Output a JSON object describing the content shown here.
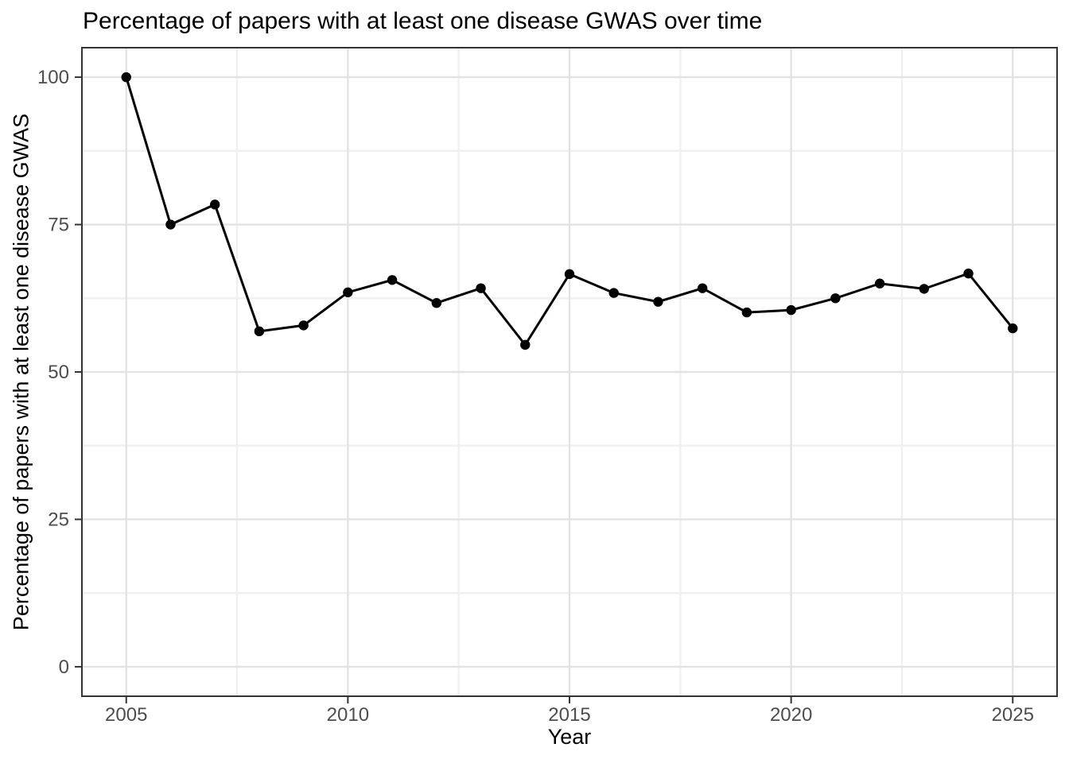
{
  "chart_data": {
    "type": "line",
    "title": "Percentage of papers with at least one disease GWAS over time",
    "xlabel": "Year",
    "ylabel": "Percentage of papers with at least one disease GWAS",
    "x": [
      2005,
      2006,
      2007,
      2008,
      2009,
      2010,
      2011,
      2012,
      2013,
      2014,
      2015,
      2016,
      2017,
      2018,
      2019,
      2020,
      2021,
      2022,
      2023,
      2024,
      2025
    ],
    "values": [
      100,
      75,
      78.4,
      56.9,
      57.9,
      63.5,
      65.6,
      61.7,
      64.2,
      54.6,
      66.6,
      63.4,
      61.9,
      64.2,
      60.1,
      60.5,
      62.5,
      65.0,
      64.1,
      66.7,
      57.4
    ],
    "xlim": [
      2004,
      2026
    ],
    "ylim": [
      -5,
      105
    ],
    "x_major_ticks": [
      2005,
      2010,
      2015,
      2020,
      2025
    ],
    "x_tick_labels": [
      "2005",
      "2010",
      "2015",
      "2020",
      "2025"
    ],
    "x_minor_ticks": [
      2007.5,
      2012.5,
      2017.5,
      2022.5
    ],
    "y_major_ticks": [
      0,
      25,
      50,
      75,
      100
    ],
    "y_tick_labels": [
      "0",
      "25",
      "50",
      "75",
      "100"
    ],
    "y_minor_ticks": [
      12.5,
      37.5,
      62.5,
      87.5
    ],
    "grid": "major+minor",
    "legend": "none",
    "style": {
      "line_color": "#000000",
      "point_color": "#000000",
      "grid_major_color": "#e3e3e3",
      "grid_minor_color": "#f0f0f0",
      "panel_border_color": "#333333",
      "tick_color": "#333333",
      "tick_label_color": "#4d4d4d",
      "background": "#ffffff"
    }
  }
}
